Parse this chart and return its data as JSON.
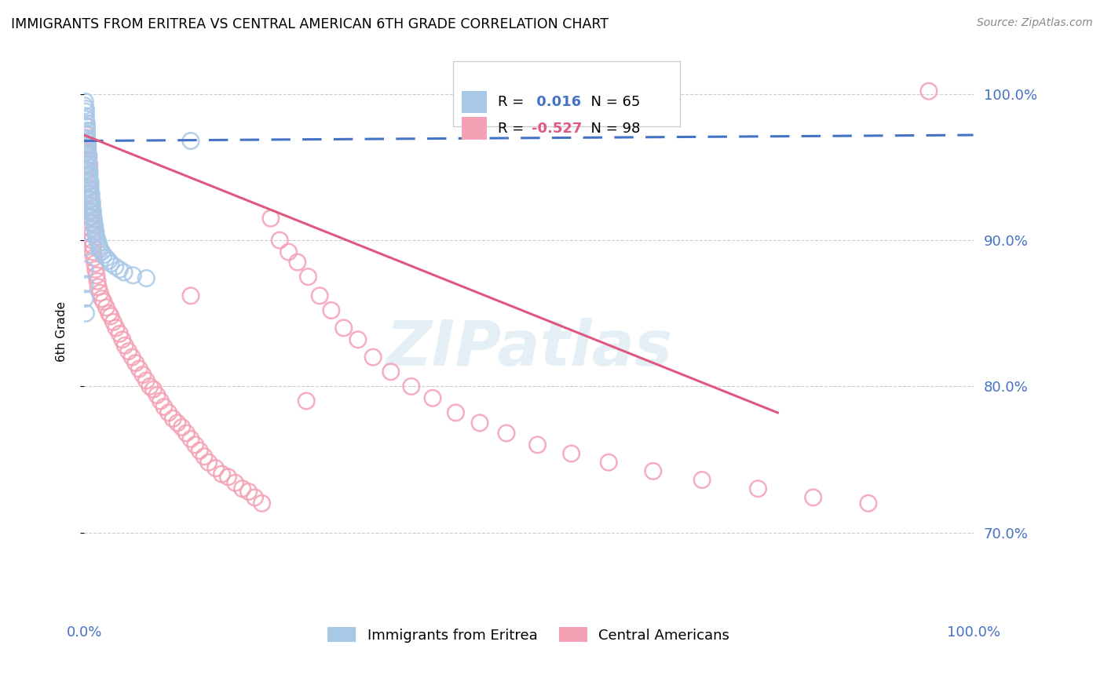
{
  "title": "IMMIGRANTS FROM ERITREA VS CENTRAL AMERICAN 6TH GRADE CORRELATION CHART",
  "source": "Source: ZipAtlas.com",
  "ylabel": "6th Grade",
  "legend_labels": [
    "Immigrants from Eritrea",
    "Central Americans"
  ],
  "r_eritrea": 0.016,
  "n_eritrea": 65,
  "r_central": -0.527,
  "n_central": 98,
  "xlim": [
    0.0,
    1.0
  ],
  "ylim": [
    0.645,
    1.03
  ],
  "yticks": [
    0.7,
    0.8,
    0.9,
    1.0
  ],
  "ytick_labels": [
    "70.0%",
    "80.0%",
    "90.0%",
    "100.0%"
  ],
  "xtick_labels": [
    "0.0%",
    "",
    "",
    "",
    "100.0%"
  ],
  "color_eritrea": "#a8c8e8",
  "color_central": "#f4a0b5",
  "color_trend_eritrea": "#4472c4",
  "color_trend_central": "#e05880",
  "watermark": "ZIPatlas",
  "axis_label_color": "#4472c4",
  "eritrea_trend_x0": 0.0,
  "eritrea_trend_y0": 0.968,
  "eritrea_trend_x1": 1.0,
  "eritrea_trend_y1": 0.972,
  "central_trend_x0": 0.0,
  "central_trend_y0": 0.972,
  "central_trend_x1": 0.78,
  "central_trend_y1": 0.782,
  "eritrea_x": [
    0.001,
    0.001,
    0.002,
    0.002,
    0.002,
    0.002,
    0.003,
    0.003,
    0.003,
    0.003,
    0.003,
    0.004,
    0.004,
    0.004,
    0.004,
    0.004,
    0.005,
    0.005,
    0.005,
    0.005,
    0.005,
    0.006,
    0.006,
    0.006,
    0.006,
    0.007,
    0.007,
    0.007,
    0.007,
    0.008,
    0.008,
    0.008,
    0.009,
    0.009,
    0.009,
    0.01,
    0.01,
    0.01,
    0.011,
    0.011,
    0.012,
    0.012,
    0.013,
    0.013,
    0.014,
    0.015,
    0.016,
    0.017,
    0.018,
    0.02,
    0.022,
    0.025,
    0.028,
    0.03,
    0.035,
    0.04,
    0.045,
    0.055,
    0.07,
    0.12,
    0.001,
    0.001,
    0.001,
    0.001,
    0.002
  ],
  "eritrea_y": [
    0.995,
    0.992,
    0.99,
    0.988,
    0.985,
    0.983,
    0.98,
    0.978,
    0.975,
    0.973,
    0.97,
    0.968,
    0.966,
    0.964,
    0.962,
    0.96,
    0.958,
    0.956,
    0.954,
    0.952,
    0.95,
    0.948,
    0.946,
    0.944,
    0.942,
    0.94,
    0.938,
    0.936,
    0.934,
    0.932,
    0.93,
    0.928,
    0.926,
    0.924,
    0.922,
    0.92,
    0.918,
    0.916,
    0.914,
    0.912,
    0.91,
    0.908,
    0.906,
    0.904,
    0.902,
    0.9,
    0.898,
    0.896,
    0.894,
    0.892,
    0.89,
    0.888,
    0.886,
    0.884,
    0.882,
    0.88,
    0.878,
    0.876,
    0.874,
    0.968,
    0.895,
    0.88,
    0.87,
    0.86,
    0.85
  ],
  "central_x": [
    0.001,
    0.001,
    0.002,
    0.002,
    0.003,
    0.003,
    0.004,
    0.004,
    0.005,
    0.005,
    0.006,
    0.006,
    0.007,
    0.007,
    0.008,
    0.008,
    0.009,
    0.009,
    0.01,
    0.01,
    0.011,
    0.012,
    0.013,
    0.014,
    0.015,
    0.016,
    0.018,
    0.02,
    0.022,
    0.025,
    0.028,
    0.03,
    0.033,
    0.036,
    0.04,
    0.043,
    0.046,
    0.05,
    0.054,
    0.058,
    0.062,
    0.066,
    0.07,
    0.074,
    0.078,
    0.082,
    0.086,
    0.09,
    0.095,
    0.1,
    0.105,
    0.11,
    0.115,
    0.12,
    0.125,
    0.13,
    0.135,
    0.14,
    0.148,
    0.155,
    0.162,
    0.17,
    0.178,
    0.185,
    0.192,
    0.2,
    0.21,
    0.22,
    0.23,
    0.24,
    0.252,
    0.265,
    0.278,
    0.292,
    0.308,
    0.325,
    0.345,
    0.368,
    0.392,
    0.418,
    0.445,
    0.475,
    0.51,
    0.548,
    0.59,
    0.64,
    0.695,
    0.758,
    0.82,
    0.882,
    0.002,
    0.003,
    0.004,
    0.005,
    0.006,
    0.95,
    0.12,
    0.25
  ],
  "central_y": [
    0.97,
    0.965,
    0.96,
    0.955,
    0.952,
    0.948,
    0.945,
    0.94,
    0.936,
    0.932,
    0.928,
    0.924,
    0.92,
    0.916,
    0.912,
    0.908,
    0.904,
    0.9,
    0.896,
    0.892,
    0.888,
    0.884,
    0.88,
    0.876,
    0.872,
    0.868,
    0.864,
    0.86,
    0.858,
    0.854,
    0.85,
    0.848,
    0.844,
    0.84,
    0.836,
    0.832,
    0.828,
    0.824,
    0.82,
    0.816,
    0.812,
    0.808,
    0.804,
    0.8,
    0.798,
    0.794,
    0.79,
    0.786,
    0.782,
    0.778,
    0.775,
    0.772,
    0.768,
    0.764,
    0.76,
    0.756,
    0.752,
    0.748,
    0.744,
    0.74,
    0.738,
    0.734,
    0.73,
    0.728,
    0.724,
    0.72,
    0.915,
    0.9,
    0.892,
    0.885,
    0.875,
    0.862,
    0.852,
    0.84,
    0.832,
    0.82,
    0.81,
    0.8,
    0.792,
    0.782,
    0.775,
    0.768,
    0.76,
    0.754,
    0.748,
    0.742,
    0.736,
    0.73,
    0.724,
    0.72,
    0.978,
    0.972,
    0.965,
    0.958,
    0.952,
    1.002,
    0.862,
    0.79
  ]
}
